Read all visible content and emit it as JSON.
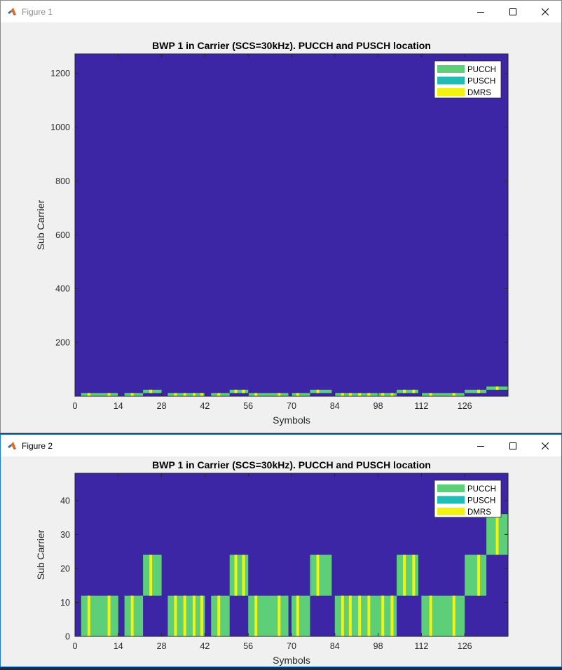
{
  "windows": [
    {
      "title": "Figure 1",
      "controls": {
        "minimize": "minimize-icon",
        "maximize": "maximize-icon",
        "close": "close-icon"
      },
      "chart_data": {
        "type": "heatmap",
        "title": "BWP 1 in Carrier (SCS=30kHz). PUCCH and PUSCH location",
        "xlabel": "Symbols",
        "ylabel": "Sub Carrier",
        "xlim": [
          0,
          140
        ],
        "ylim": [
          0,
          1272
        ],
        "x_ticks": [
          0,
          14,
          28,
          42,
          56,
          70,
          84,
          98,
          112,
          126
        ],
        "y_ticks": [
          200,
          400,
          600,
          800,
          1000,
          1200
        ],
        "grid": false,
        "legend": {
          "placement": "top-right",
          "entries": [
            "PUCCH",
            "PUSCH",
            "DMRS"
          ]
        }
      }
    },
    {
      "title": "Figure 2",
      "controls": {
        "minimize": "minimize-icon",
        "maximize": "maximize-icon",
        "close": "close-icon"
      },
      "chart_data": {
        "type": "heatmap",
        "title": "BWP 1 in Carrier (SCS=30kHz). PUCCH and PUSCH location",
        "xlabel": "Symbols",
        "ylabel": "Sub Carrier",
        "xlim": [
          0,
          140
        ],
        "ylim": [
          0,
          48
        ],
        "x_ticks": [
          0,
          14,
          28,
          42,
          56,
          70,
          84,
          98,
          112,
          126
        ],
        "y_ticks": [
          0,
          10,
          20,
          30,
          40
        ],
        "grid": false,
        "legend": {
          "placement": "top-right",
          "entries": [
            "PUCCH",
            "PUSCH",
            "DMRS"
          ]
        }
      }
    }
  ],
  "chart_shared": {
    "colors": {
      "background": "#3c26a6",
      "PUCCH": "#5ccf78",
      "PUSCH": "#20bdb4",
      "DMRS": "#f4f210"
    },
    "blocks": [
      {
        "sym_start": 2,
        "sym_end": 14,
        "sc_start": 0,
        "sc_end": 12,
        "dmrs": [
          4.5,
          11
        ]
      },
      {
        "sym_start": 16,
        "sym_end": 22,
        "sc_start": 0,
        "sc_end": 12,
        "dmrs": [
          18.5
        ]
      },
      {
        "sym_start": 22,
        "sym_end": 28,
        "sc_start": 12,
        "sc_end": 24,
        "dmrs": [
          24.5
        ]
      },
      {
        "sym_start": 30,
        "sym_end": 42,
        "sc_start": 0,
        "sc_end": 12,
        "dmrs": [
          32.5,
          35.5,
          38.5,
          41
        ]
      },
      {
        "sym_start": 44,
        "sym_end": 50,
        "sc_start": 0,
        "sc_end": 12,
        "dmrs": [
          46.5
        ]
      },
      {
        "sym_start": 50,
        "sym_end": 56,
        "sc_start": 12,
        "sc_end": 24,
        "dmrs": [
          52,
          54.5
        ]
      },
      {
        "sym_start": 56,
        "sym_end": 69,
        "sc_start": 0,
        "sc_end": 12,
        "dmrs": [
          58.5,
          66
        ]
      },
      {
        "sym_start": 70,
        "sym_end": 76,
        "sc_start": 0,
        "sc_end": 12,
        "dmrs": [
          72
        ]
      },
      {
        "sym_start": 76,
        "sym_end": 83,
        "sc_start": 12,
        "sc_end": 24,
        "dmrs": [
          78.5
        ]
      },
      {
        "sym_start": 84,
        "sym_end": 98,
        "sc_start": 0,
        "sc_end": 12,
        "dmrs": [
          86.5,
          89,
          92,
          95
        ]
      },
      {
        "sym_start": 98,
        "sym_end": 104,
        "sc_start": 0,
        "sc_end": 12,
        "dmrs": [
          99.5,
          102.5
        ]
      },
      {
        "sym_start": 104,
        "sym_end": 111,
        "sc_start": 12,
        "sc_end": 24,
        "dmrs": [
          106.5,
          109.5
        ]
      },
      {
        "sym_start": 112,
        "sym_end": 126,
        "sc_start": 0,
        "sc_end": 12,
        "dmrs": [
          115,
          122.5
        ]
      },
      {
        "sym_start": 126,
        "sym_end": 133,
        "sc_start": 12,
        "sc_end": 24,
        "dmrs": [
          130.5
        ]
      },
      {
        "sym_start": 133,
        "sym_end": 140,
        "sc_start": 24,
        "sc_end": 36,
        "dmrs": [
          136.5
        ]
      }
    ]
  }
}
